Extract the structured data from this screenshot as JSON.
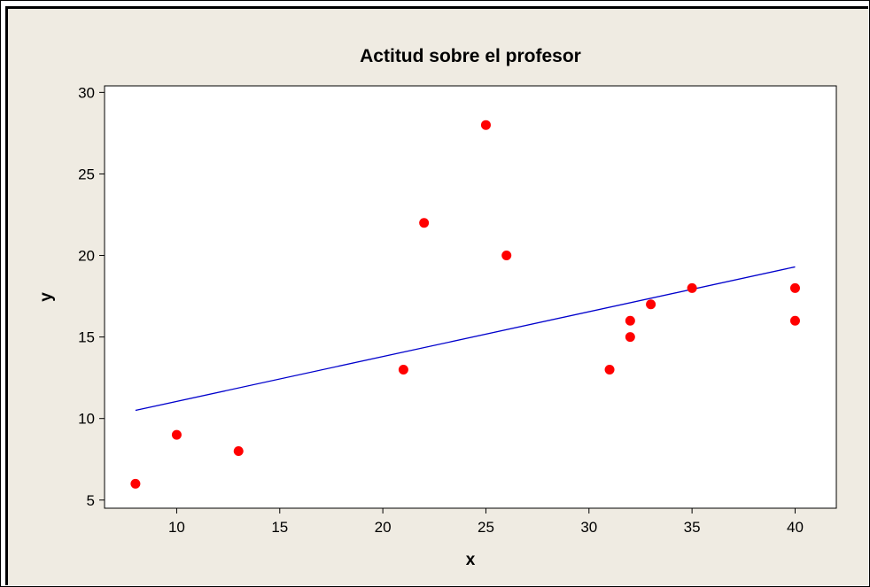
{
  "chart_data": {
    "type": "scatter",
    "title": "Actitud sobre el profesor",
    "xlabel": "x",
    "ylabel": "y",
    "xlim": [
      6.5,
      42
    ],
    "ylim": [
      4.5,
      30.4
    ],
    "xticks": [
      10,
      15,
      20,
      25,
      30,
      35,
      40
    ],
    "yticks": [
      5,
      10,
      15,
      20,
      25,
      30
    ],
    "grid": false,
    "points": [
      {
        "x": 8,
        "y": 6
      },
      {
        "x": 10,
        "y": 9
      },
      {
        "x": 13,
        "y": 8
      },
      {
        "x": 21,
        "y": 13
      },
      {
        "x": 22,
        "y": 22
      },
      {
        "x": 25,
        "y": 28
      },
      {
        "x": 26,
        "y": 20
      },
      {
        "x": 31,
        "y": 13
      },
      {
        "x": 32,
        "y": 16
      },
      {
        "x": 32,
        "y": 15
      },
      {
        "x": 33,
        "y": 17
      },
      {
        "x": 35,
        "y": 18
      },
      {
        "x": 40,
        "y": 18
      },
      {
        "x": 40,
        "y": 16
      }
    ],
    "fit_line": {
      "x": [
        8,
        40
      ],
      "y": [
        10.5,
        19.3
      ]
    },
    "colors": {
      "points": "#ff0000",
      "fit_line": "#0000cc",
      "panel": "#efebe2",
      "plot_area": "#ffffff"
    }
  }
}
